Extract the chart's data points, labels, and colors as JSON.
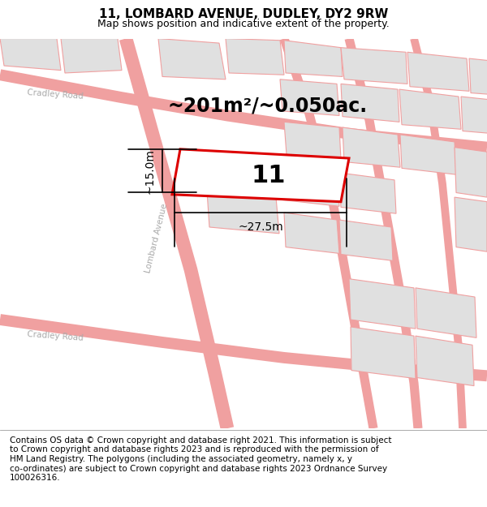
{
  "title": "11, LOMBARD AVENUE, DUDLEY, DY2 9RW",
  "subtitle": "Map shows position and indicative extent of the property.",
  "area_text": "~201m²/~0.050ac.",
  "number_label": "11",
  "width_label": "~27.5m",
  "height_label": "~15.0m",
  "footer": "Contains OS data © Crown copyright and database right 2021. This information is subject\nto Crown copyright and database rights 2023 and is reproduced with the permission of\nHM Land Registry. The polygons (including the associated geometry, namely x, y\nco-ordinates) are subject to Crown copyright and database rights 2023 Ordnance Survey\n100026316.",
  "bg_color": "#ffffff",
  "map_bg": "#ffffff",
  "road_color": "#f0a0a0",
  "block_color": "#e0e0e0",
  "block_edge": "#f0a0a0",
  "plot_edge_color": "#dd0000",
  "plot_fill": "#ffffff",
  "title_fontsize": 11,
  "subtitle_fontsize": 9,
  "area_fontsize": 17,
  "number_fontsize": 22,
  "dim_fontsize": 10,
  "footer_fontsize": 7.5,
  "road_label_color": "#aaaaaa",
  "road_label_size": 7.5
}
